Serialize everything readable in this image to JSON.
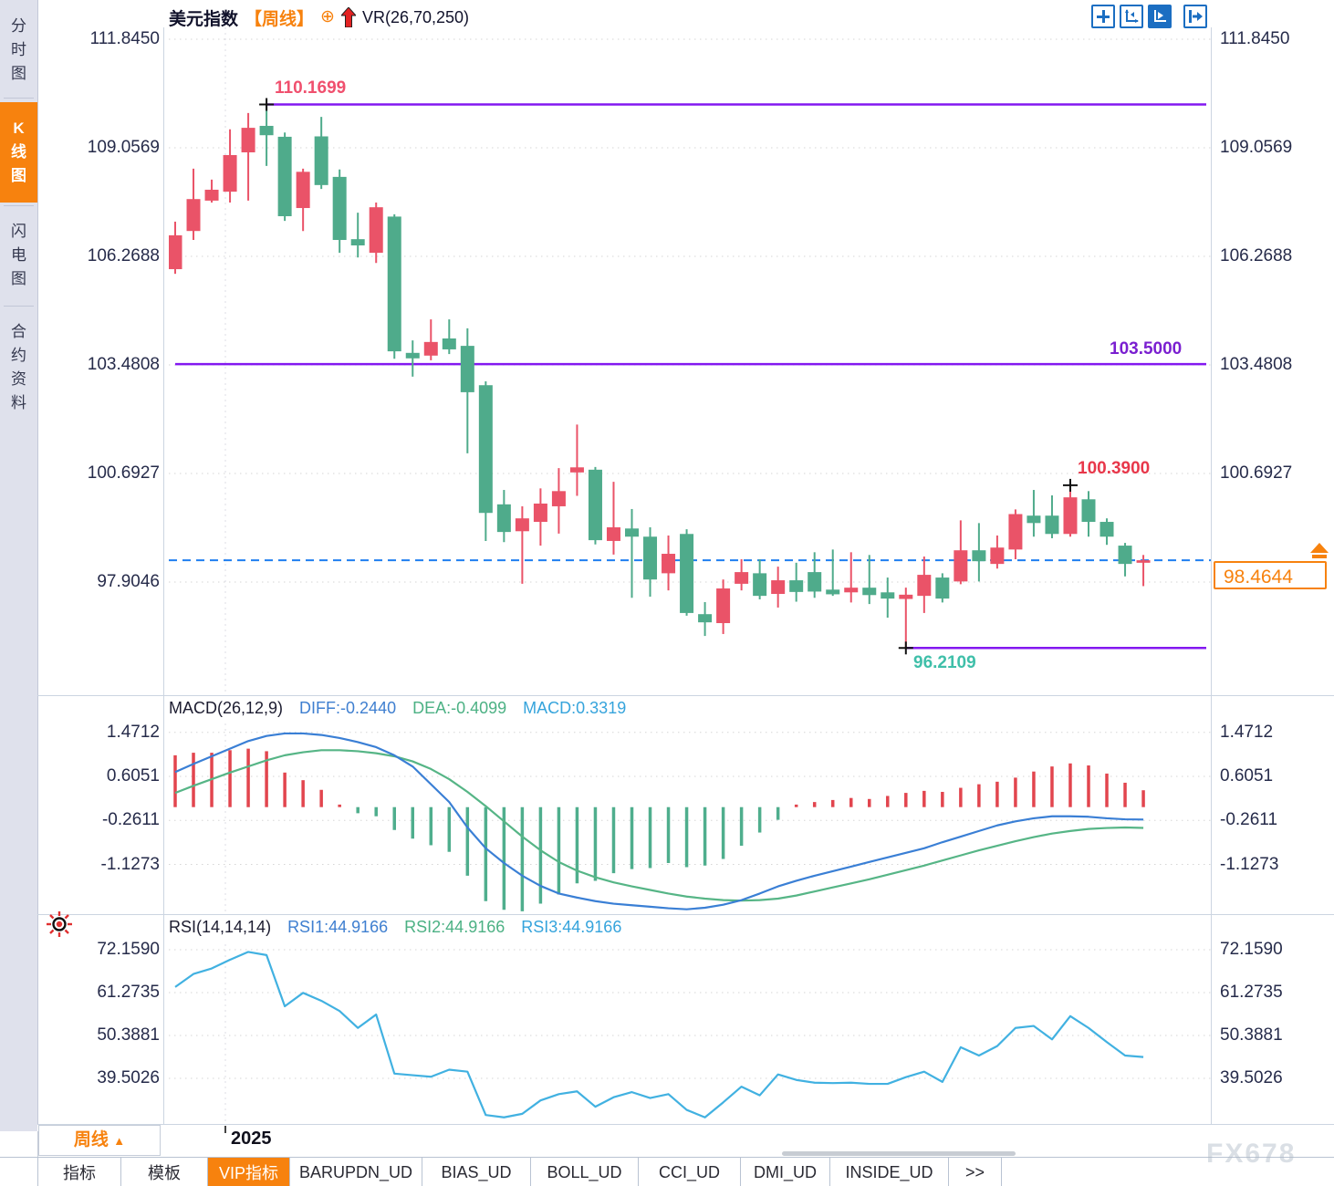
{
  "colors": {
    "accent_orange": "#f7820e",
    "up_candle": "#ea5368",
    "down_candle": "#4fab8b",
    "purple_level": "#8318f0",
    "last_price_blue": "#1f7ff0",
    "toolbar_blue": "#1b6ec2"
  },
  "sidebar": {
    "tabs": [
      {
        "label": "分时图",
        "active": false
      },
      {
        "label": "K线图",
        "active": true
      },
      {
        "label": "闪电图",
        "active": false
      },
      {
        "label": "合约资料",
        "active": false
      }
    ]
  },
  "header": {
    "symbol": "美元指数",
    "period_tag": "【周线】",
    "target_icon": "⊕",
    "vr_label": "VR(26,70,250)"
  },
  "toolbar": {
    "icons": [
      "crosshair-move-icon",
      "axis-zoom-icon",
      "indicator-play-icon",
      "pan-to-latest-icon"
    ]
  },
  "main_chart": {
    "resistance_label": "110.1699",
    "mid_level_label": "103.5000",
    "support_label": "96.2109",
    "swing_high_label": "100.3900",
    "last_price_label": "98.4644"
  },
  "macd_header": {
    "title": "MACD(26,12,9)",
    "diff": "DIFF:-0.2440",
    "dea": "DEA:-0.4099",
    "macd": "MACD:0.3319"
  },
  "rsi_header": {
    "title": "RSI(14,14,14)",
    "rsi1": "RSI1:44.9166",
    "rsi2": "RSI2:44.9166",
    "rsi3": "RSI3:44.9166"
  },
  "bottom": {
    "period_button": "周线",
    "period_arrow": "▲",
    "year_label": "2025",
    "tabs": [
      {
        "label": "指标",
        "active": false
      },
      {
        "label": "模板",
        "active": false
      },
      {
        "label": "VIP指标",
        "active": true
      },
      {
        "label": "BARUPDN_UD",
        "active": false
      },
      {
        "label": "BIAS_UD",
        "active": false
      },
      {
        "label": "BOLL_UD",
        "active": false
      },
      {
        "label": "CCI_UD",
        "active": false
      },
      {
        "label": "DMI_UD",
        "active": false
      },
      {
        "label": "INSIDE_UD",
        "active": false
      },
      {
        "label": ">>",
        "active": false
      }
    ],
    "watermark": "FX678"
  },
  "chart_data": [
    {
      "type": "candlestick",
      "title": "美元指数 周线 (US Dollar Index, Weekly)",
      "up_color": "#ea5368",
      "down_color": "#4fab8b",
      "convention": "red=up, green=down",
      "y_ticks": [
        111.845,
        109.0569,
        106.2688,
        103.4808,
        100.6927,
        97.9046
      ],
      "x_tick_labels": [
        "2025"
      ],
      "last_price": 98.4644,
      "levels": [
        {
          "value": 110.1699,
          "start_index": 5,
          "label_color": "#f0506e"
        },
        {
          "value": 103.5,
          "start_index": 0,
          "label_color": "#7a1fd0"
        },
        {
          "value": 96.2109,
          "start_index": 40,
          "label_color": "#3fbfa9"
        }
      ],
      "markers": [
        {
          "index": 5,
          "price": 110.1699
        },
        {
          "index": 40,
          "price": 96.2109
        },
        {
          "index": 49,
          "price": 100.39
        }
      ],
      "ohlc": [
        [
          105.94,
          107.16,
          105.82,
          106.81
        ],
        [
          106.92,
          108.52,
          106.69,
          107.74
        ],
        [
          107.7,
          108.24,
          107.65,
          107.98
        ],
        [
          107.93,
          109.53,
          107.65,
          108.87
        ],
        [
          108.94,
          109.95,
          107.7,
          109.57
        ],
        [
          109.62,
          110.1699,
          108.59,
          109.38
        ],
        [
          109.34,
          109.45,
          107.18,
          107.3
        ],
        [
          107.51,
          108.52,
          106.92,
          108.44
        ],
        [
          109.35,
          109.85,
          108.0,
          108.1
        ],
        [
          108.31,
          108.5,
          106.36,
          106.69
        ],
        [
          106.71,
          107.39,
          106.24,
          106.55
        ],
        [
          106.36,
          107.65,
          106.1,
          107.53
        ],
        [
          107.29,
          107.35,
          103.64,
          103.83
        ],
        [
          103.79,
          104.11,
          103.18,
          103.65
        ],
        [
          103.72,
          104.65,
          103.6,
          104.07
        ],
        [
          104.16,
          104.65,
          103.76,
          103.88
        ],
        [
          103.97,
          104.42,
          101.21,
          102.78
        ],
        [
          102.96,
          103.06,
          98.96,
          99.68
        ],
        [
          99.9,
          100.27,
          98.93,
          99.19
        ],
        [
          99.21,
          99.85,
          97.86,
          99.54
        ],
        [
          99.45,
          100.31,
          98.84,
          99.92
        ],
        [
          99.85,
          100.83,
          99.15,
          100.24
        ],
        [
          100.72,
          101.95,
          100.12,
          100.85
        ],
        [
          100.79,
          100.86,
          98.87,
          98.98
        ],
        [
          98.96,
          100.48,
          98.61,
          99.31
        ],
        [
          99.28,
          99.78,
          97.5,
          99.07
        ],
        [
          99.07,
          99.31,
          97.53,
          97.97
        ],
        [
          98.13,
          99.1,
          97.69,
          98.63
        ],
        [
          99.14,
          99.26,
          97.04,
          97.11
        ],
        [
          97.08,
          97.39,
          96.52,
          96.87
        ],
        [
          96.85,
          97.97,
          96.57,
          97.74
        ],
        [
          97.86,
          98.49,
          97.69,
          98.16
        ],
        [
          98.13,
          98.49,
          97.46,
          97.55
        ],
        [
          97.6,
          98.3,
          97.25,
          97.95
        ],
        [
          97.95,
          98.4,
          97.4,
          97.65
        ],
        [
          98.16,
          98.67,
          97.5,
          97.66
        ],
        [
          97.71,
          98.74,
          97.55,
          97.59
        ],
        [
          97.64,
          98.67,
          97.38,
          97.76
        ],
        [
          97.76,
          98.6,
          97.34,
          97.57
        ],
        [
          97.64,
          98.02,
          96.99,
          97.48
        ],
        [
          97.47,
          97.76,
          96.2109,
          97.58
        ],
        [
          97.55,
          98.56,
          97.11,
          98.09
        ],
        [
          98.02,
          98.13,
          97.38,
          97.48
        ],
        [
          97.92,
          99.49,
          97.85,
          98.72
        ],
        [
          98.72,
          99.42,
          97.92,
          98.44
        ],
        [
          98.37,
          99.1,
          98.25,
          98.79
        ],
        [
          98.74,
          99.77,
          98.49,
          99.65
        ],
        [
          99.61,
          100.27,
          99.07,
          99.42
        ],
        [
          99.61,
          100.13,
          99.03,
          99.14
        ],
        [
          99.14,
          100.39,
          99.07,
          100.08
        ],
        [
          100.03,
          100.24,
          99.07,
          99.45
        ],
        [
          99.45,
          99.54,
          98.86,
          99.07
        ],
        [
          98.84,
          98.91,
          98.05,
          98.37
        ],
        [
          98.4,
          98.6,
          97.8,
          98.4644
        ]
      ]
    },
    {
      "type": "macd",
      "params": "(26,12,9)",
      "y_ticks": [
        1.4712,
        0.6051,
        -0.2611,
        -1.1273
      ],
      "diff_color": "#3a7fd5",
      "dea_color": "#56b586",
      "hist_up_color": "#e2454e",
      "hist_down_color": "#4fae8d",
      "diff": [
        0.69,
        0.85,
        1.0,
        1.15,
        1.3,
        1.4,
        1.45,
        1.45,
        1.42,
        1.36,
        1.28,
        1.18,
        1.02,
        0.8,
        0.45,
        0.1,
        -0.4,
        -0.81,
        -1.1,
        -1.35,
        -1.55,
        -1.7,
        -1.78,
        -1.85,
        -1.9,
        -1.93,
        -1.96,
        -1.99,
        -2.01,
        -1.98,
        -1.92,
        -1.83,
        -1.7,
        -1.56,
        -1.45,
        -1.35,
        -1.26,
        -1.17,
        -1.08,
        -0.99,
        -0.9,
        -0.81,
        -0.69,
        -0.58,
        -0.47,
        -0.36,
        -0.28,
        -0.22,
        -0.18,
        -0.18,
        -0.19,
        -0.22,
        -0.24,
        -0.244
      ],
      "dea": [
        0.28,
        0.42,
        0.55,
        0.68,
        0.8,
        0.92,
        1.02,
        1.08,
        1.12,
        1.12,
        1.1,
        1.06,
        1.0,
        0.9,
        0.75,
        0.55,
        0.3,
        0.02,
        -0.28,
        -0.58,
        -0.85,
        -1.08,
        -1.25,
        -1.38,
        -1.48,
        -1.56,
        -1.63,
        -1.7,
        -1.76,
        -1.8,
        -1.83,
        -1.84,
        -1.83,
        -1.8,
        -1.74,
        -1.66,
        -1.58,
        -1.5,
        -1.42,
        -1.33,
        -1.24,
        -1.15,
        -1.05,
        -0.95,
        -0.85,
        -0.76,
        -0.67,
        -0.59,
        -0.52,
        -0.47,
        -0.43,
        -0.41,
        -0.4,
        -0.4099
      ],
      "hist": [
        1.02,
        1.07,
        1.07,
        1.12,
        1.15,
        1.1,
        0.68,
        0.53,
        0.34,
        0.05,
        -0.12,
        -0.18,
        -0.45,
        -0.62,
        -0.75,
        -0.88,
        -1.35,
        -1.85,
        -2.02,
        -2.05,
        -1.9,
        -1.72,
        -1.5,
        -1.45,
        -1.3,
        -1.22,
        -1.2,
        -1.1,
        -1.18,
        -1.15,
        -1.02,
        -0.76,
        -0.5,
        -0.25,
        0.05,
        0.1,
        0.14,
        0.18,
        0.16,
        0.22,
        0.28,
        0.32,
        0.3,
        0.38,
        0.45,
        0.5,
        0.58,
        0.7,
        0.8,
        0.86,
        0.82,
        0.66,
        0.48,
        0.3319
      ]
    },
    {
      "type": "line",
      "name": "RSI",
      "params": "(14,14,14)",
      "y_ticks": [
        72.159,
        61.2735,
        50.3881,
        39.5026
      ],
      "line_color": "#41b1e1",
      "values": [
        62.7,
        66.0,
        67.4,
        69.6,
        71.6,
        70.8,
        57.8,
        61.2,
        59.2,
        56.6,
        52.3,
        55.7,
        40.7,
        40.3,
        39.9,
        41.7,
        41.2,
        30.2,
        29.6,
        30.5,
        33.9,
        35.5,
        36.2,
        32.3,
        34.7,
        36.0,
        34.5,
        35.5,
        31.5,
        29.6,
        33.4,
        37.4,
        35.2,
        40.5,
        39.1,
        38.4,
        38.3,
        38.4,
        38.1,
        38.1,
        39.8,
        41.2,
        38.6,
        47.4,
        45.3,
        47.7,
        52.3,
        52.8,
        49.4,
        55.3,
        52.3,
        48.7,
        45.3,
        44.9166
      ]
    }
  ]
}
